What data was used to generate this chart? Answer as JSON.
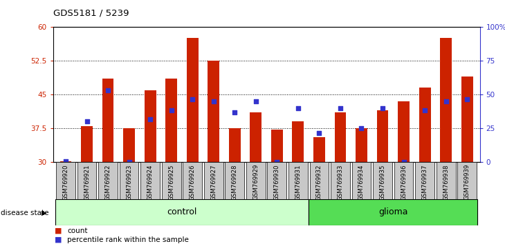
{
  "title": "GDS5181 / 5239",
  "samples": [
    "GSM769920",
    "GSM769921",
    "GSM769922",
    "GSM769923",
    "GSM769924",
    "GSM769925",
    "GSM769926",
    "GSM769927",
    "GSM769928",
    "GSM769929",
    "GSM769930",
    "GSM769931",
    "GSM769932",
    "GSM769933",
    "GSM769934",
    "GSM769935",
    "GSM769936",
    "GSM769937",
    "GSM769938",
    "GSM769939"
  ],
  "bar_heights": [
    30.2,
    38.0,
    48.5,
    37.5,
    46.0,
    48.5,
    57.5,
    52.5,
    37.5,
    41.0,
    37.2,
    39.0,
    35.5,
    41.0,
    37.5,
    41.5,
    43.5,
    46.5,
    57.5,
    49.0
  ],
  "blue_squares": [
    30.2,
    39.0,
    46.0,
    30.0,
    39.5,
    41.5,
    44.0,
    43.5,
    41.0,
    43.5,
    30.0,
    42.0,
    36.5,
    42.0,
    37.5,
    42.0,
    30.0,
    41.5,
    43.5,
    44.0
  ],
  "bar_color": "#CC2200",
  "blue_color": "#3333CC",
  "ymin": 30,
  "ymax": 60,
  "yticks": [
    30,
    37.5,
    45,
    52.5,
    60
  ],
  "ytick_labels": [
    "30",
    "37.5",
    "45",
    "52.5",
    "60"
  ],
  "right_ytick_labels": [
    "0",
    "25",
    "50",
    "75",
    "100%"
  ],
  "control_count": 12,
  "glioma_count": 8,
  "control_label": "control",
  "glioma_label": "glioma",
  "disease_state_label": "disease state",
  "legend_count": "count",
  "legend_percentile": "percentile rank within the sample",
  "axis_color_left": "#CC2200",
  "axis_color_right": "#3333CC",
  "tick_label_bg": "#C8C8C8",
  "control_bg": "#CCFFCC",
  "glioma_bg": "#55DD55"
}
